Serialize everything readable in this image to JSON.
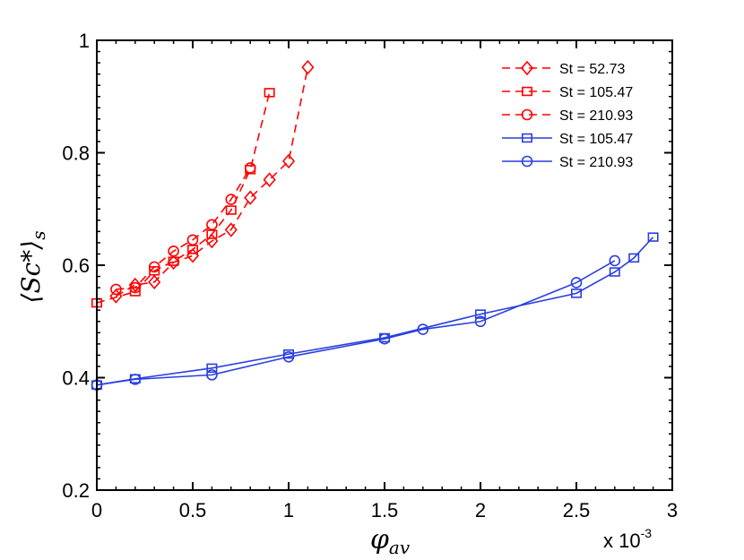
{
  "chart_data": {
    "type": "line",
    "title": "",
    "xlabel_main": "φ",
    "xlabel_sub": "av",
    "ylabel_main": "⟨Sc*⟩",
    "ylabel_sub": "s",
    "x_multiplier": "x 10",
    "x_multiplier_exp": "-3",
    "xlim": [
      0,
      3
    ],
    "ylim": [
      0.2,
      1
    ],
    "xticks": [
      0,
      0.5,
      1,
      1.5,
      2,
      2.5,
      3
    ],
    "xtick_labels": [
      "0",
      "0.5",
      "1",
      "1.5",
      "2",
      "2.5",
      "3"
    ],
    "yticks": [
      0.2,
      0.4,
      0.6,
      0.8,
      1
    ],
    "ytick_labels": [
      "0.2",
      "0.4",
      "0.6",
      "0.8",
      "1"
    ],
    "legend_position": "top-right",
    "series": [
      {
        "name": "St = 52.73",
        "color": "#ff0000",
        "dash": "dashed",
        "marker": "diamond",
        "x": [
          0.1,
          0.2,
          0.3,
          0.4,
          0.5,
          0.6,
          0.7,
          0.8,
          0.9,
          1.0,
          1.1
        ],
        "y": [
          0.545,
          0.565,
          0.57,
          0.605,
          0.617,
          0.643,
          0.663,
          0.72,
          0.752,
          0.785,
          0.952
        ]
      },
      {
        "name": "St = 105.47",
        "color": "#ff0000",
        "dash": "dashed",
        "marker": "square",
        "x": [
          0,
          0.2,
          0.3,
          0.4,
          0.5,
          0.6,
          0.7,
          0.8,
          0.9
        ],
        "y": [
          0.533,
          0.553,
          0.59,
          0.607,
          0.628,
          0.655,
          0.698,
          0.77,
          0.907
        ]
      },
      {
        "name": "St = 210.93",
        "color": "#ff0000",
        "dash": "dashed",
        "marker": "circle",
        "x": [
          0.1,
          0.2,
          0.3,
          0.4,
          0.5,
          0.6,
          0.7,
          0.8
        ],
        "y": [
          0.557,
          0.56,
          0.597,
          0.625,
          0.645,
          0.672,
          0.717,
          0.773
        ]
      },
      {
        "name": "St = 105.47",
        "color": "#2a3fe0",
        "dash": "solid",
        "marker": "square",
        "x": [
          0,
          0.2,
          0.6,
          1.0,
          1.5,
          2.0,
          2.5,
          2.7,
          2.8,
          2.9
        ],
        "y": [
          0.387,
          0.398,
          0.417,
          0.442,
          0.471,
          0.513,
          0.55,
          0.588,
          0.613,
          0.65
        ]
      },
      {
        "name": "St = 210.93",
        "color": "#2a3fe0",
        "dash": "solid",
        "marker": "circle",
        "x": [
          0,
          0.2,
          0.6,
          1.0,
          1.5,
          1.7,
          2.0,
          2.5,
          2.7
        ],
        "y": [
          0.387,
          0.397,
          0.405,
          0.437,
          0.469,
          0.486,
          0.5,
          0.569,
          0.608
        ]
      }
    ]
  }
}
